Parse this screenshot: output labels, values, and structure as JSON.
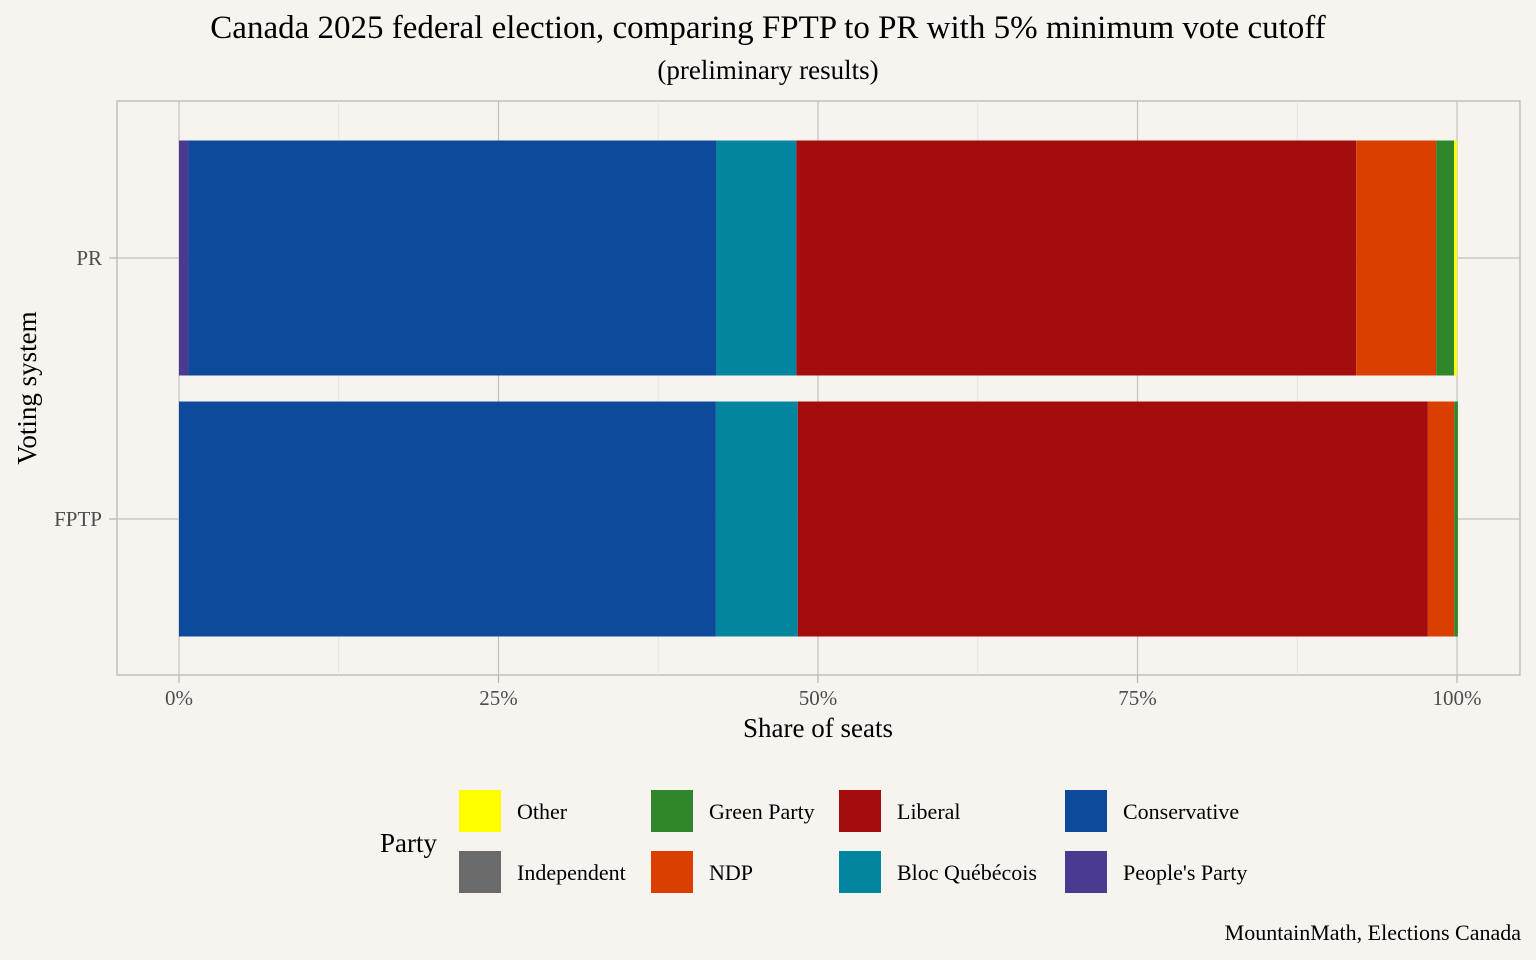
{
  "chart_data": {
    "type": "bar",
    "orientation": "horizontal",
    "stacked": true,
    "title": "Canada 2025 federal election, comparing FPTP to PR with 5% minimum vote cutoff",
    "subtitle": "(preliminary results)",
    "xlabel": "Share of seats",
    "ylabel": "Voting system",
    "xlim": [
      0,
      1
    ],
    "x_ticks": [
      0,
      0.25,
      0.5,
      0.75,
      1
    ],
    "x_tick_labels": [
      "0%",
      "25%",
      "50%",
      "75%",
      "100%"
    ],
    "categories": [
      "PR",
      "FPTP"
    ],
    "stack_order": [
      "People's Party",
      "Conservative",
      "Bloc Québécois",
      "Liberal",
      "NDP",
      "Green Party",
      "Independent",
      "Other"
    ],
    "series": [
      {
        "name": "People's Party",
        "color": "#4b3a8f",
        "values": [
          0.0074,
          0.0
        ]
      },
      {
        "name": "Conservative",
        "color": "#0d4a9c",
        "values": [
          0.4131,
          0.4201
        ]
      },
      {
        "name": "Bloc Québécois",
        "color": "#03849f",
        "values": [
          0.0626,
          0.0641
        ]
      },
      {
        "name": "Liberal",
        "color": "#a30d0d",
        "values": [
          0.438,
          0.493
        ]
      },
      {
        "name": "NDP",
        "color": "#db3f00",
        "values": [
          0.0626,
          0.0206
        ]
      },
      {
        "name": "Green Party",
        "color": "#30862a",
        "values": [
          0.014,
          0.0029
        ]
      },
      {
        "name": "Independent",
        "color": "#6b6b6b",
        "values": [
          0.0,
          0.0
        ]
      },
      {
        "name": "Other",
        "color": "#ffff00",
        "values": [
          0.0023,
          0.0
        ]
      }
    ],
    "grid": true,
    "legend_position": "bottom",
    "legend_title": "Party",
    "legend_rows": [
      [
        "Other",
        "Green Party",
        "Liberal",
        "Conservative"
      ],
      [
        "Independent",
        "NDP",
        "Bloc Québécois",
        "People's Party"
      ]
    ],
    "caption": "MountainMath, Elections Canada"
  }
}
